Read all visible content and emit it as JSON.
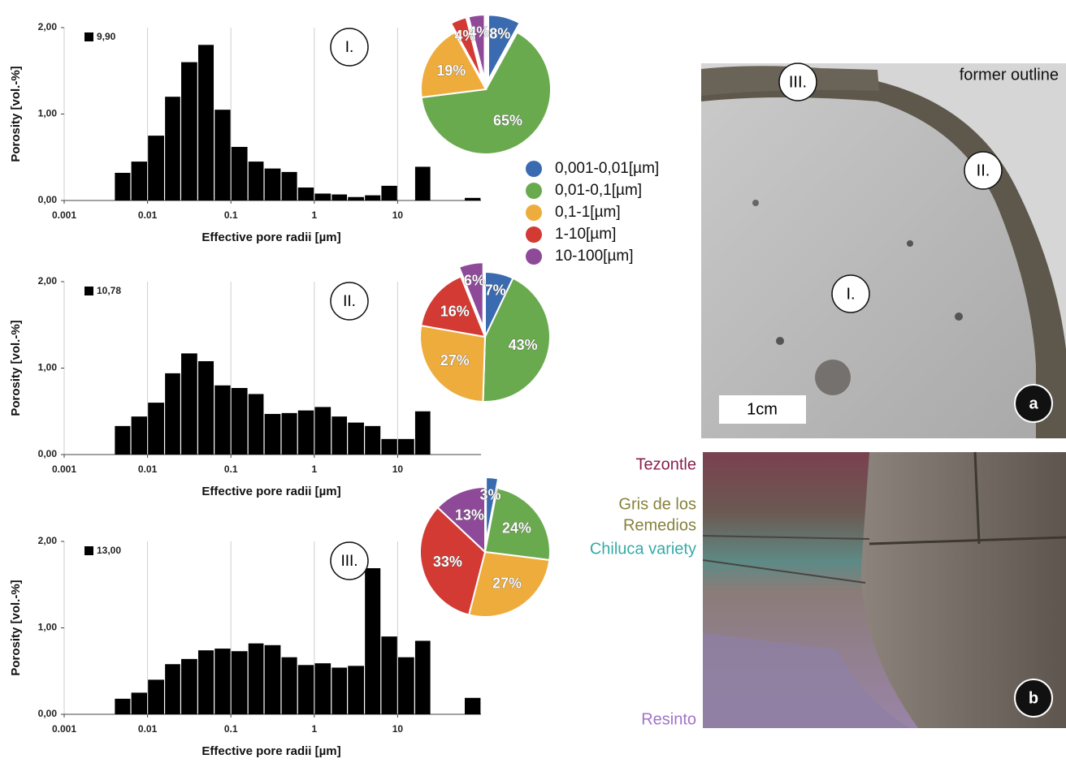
{
  "chart_data": [
    {
      "type": "histogram",
      "xscale": "log",
      "grid": true,
      "color": "#000000",
      "annotation": "9,90",
      "panel_label": "I.",
      "x_label": "Effective pore radii [µm]",
      "y_label": "Porosity [vol.-%]",
      "bins": [
        0.004,
        0.0063,
        0.01,
        0.016,
        0.025,
        0.04,
        0.063,
        0.1,
        0.16,
        0.25,
        0.4,
        0.63,
        1,
        1.6,
        2.5,
        4,
        6.3,
        10,
        16,
        25,
        40,
        63,
        100
      ],
      "values": [
        0.32,
        0.45,
        0.75,
        1.2,
        1.6,
        1.8,
        1.05,
        0.62,
        0.45,
        0.37,
        0.33,
        0.15,
        0.08,
        0.07,
        0.04,
        0.06,
        0.17,
        0,
        0.39,
        0,
        0,
        0.03
      ],
      "xlim": [
        0.001,
        100
      ],
      "xticks": [
        0.001,
        0.01,
        0.1,
        1,
        10
      ],
      "ylim": [
        0,
        2
      ],
      "yticks": [
        {
          "value": 0,
          "label": "0,00"
        },
        {
          "value": 1,
          "label": "1,00"
        },
        {
          "value": 2,
          "label": "2,00"
        }
      ]
    },
    {
      "type": "histogram",
      "xscale": "log",
      "grid": true,
      "color": "#000000",
      "annotation": "10,78",
      "panel_label": "II.",
      "x_label": "Effective pore radii [µm]",
      "y_label": "Porosity [vol.-%]",
      "bins": [
        0.004,
        0.0063,
        0.01,
        0.016,
        0.025,
        0.04,
        0.063,
        0.1,
        0.16,
        0.25,
        0.4,
        0.63,
        1,
        1.6,
        2.5,
        4,
        6.3,
        10,
        16,
        25,
        40,
        63,
        100
      ],
      "values": [
        0.33,
        0.44,
        0.6,
        0.94,
        1.17,
        1.08,
        0.8,
        0.77,
        0.7,
        0.47,
        0.48,
        0.51,
        0.55,
        0.44,
        0.37,
        0.33,
        0.18,
        0.18,
        0.5,
        0,
        0,
        0
      ],
      "xlim": [
        0.001,
        100
      ],
      "xticks": [
        0.001,
        0.01,
        0.1,
        1,
        10
      ],
      "ylim": [
        0,
        2
      ],
      "yticks": [
        {
          "value": 0,
          "label": "0,00"
        },
        {
          "value": 1,
          "label": "1,00"
        },
        {
          "value": 2,
          "label": "2,00"
        }
      ]
    },
    {
      "type": "histogram",
      "xscale": "log",
      "grid": true,
      "color": "#000000",
      "annotation": "13,00",
      "panel_label": "III.",
      "x_label": "Effective pore radii [µm]",
      "y_label": "Porosity [vol.-%]",
      "bins": [
        0.004,
        0.0063,
        0.01,
        0.016,
        0.025,
        0.04,
        0.063,
        0.1,
        0.16,
        0.25,
        0.4,
        0.63,
        1,
        1.6,
        2.5,
        4,
        6.3,
        10,
        16,
        25,
        40,
        63,
        100
      ],
      "values": [
        0.18,
        0.25,
        0.4,
        0.58,
        0.64,
        0.74,
        0.76,
        0.73,
        0.82,
        0.8,
        0.66,
        0.57,
        0.59,
        0.54,
        0.56,
        1.69,
        0.9,
        0.66,
        0.85,
        0,
        0,
        0.19
      ],
      "xlim": [
        0.001,
        100
      ],
      "xticks": [
        0.001,
        0.01,
        0.1,
        1,
        10
      ],
      "ylim": [
        0,
        2
      ],
      "yticks": [
        {
          "value": 0,
          "label": "0,00"
        },
        {
          "value": 1,
          "label": "1,00"
        },
        {
          "value": 2,
          "label": "2,00"
        }
      ]
    },
    {
      "type": "pie",
      "categories": [
        "0,001-0,01[µm]",
        "0,01-0,1[µm]",
        "0,1-1[µm]",
        "1-10[µm]",
        "10-100[µm]"
      ],
      "colors": [
        "#3a6bb0",
        "#6aaa4f",
        "#eeac3c",
        "#d23a33",
        "#8e4a98"
      ],
      "values": [
        8,
        65,
        19,
        4,
        4
      ],
      "value_labels": [
        "8%",
        "65%",
        "19%",
        "4%",
        "4%"
      ],
      "exploded": [
        true,
        false,
        false,
        true,
        true
      ]
    },
    {
      "type": "pie",
      "values": [
        7,
        43,
        27,
        16,
        6
      ],
      "value_labels": [
        "7%",
        "43%",
        "27%",
        "16%",
        "6%"
      ],
      "exploded": [
        false,
        false,
        false,
        false,
        true
      ]
    },
    {
      "type": "pie",
      "values": [
        3,
        24,
        27,
        33,
        13
      ],
      "value_labels": [
        "3%",
        "24%",
        "27%",
        "33%",
        "13%"
      ],
      "exploded": [
        true,
        false,
        false,
        false,
        false
      ]
    }
  ],
  "photos": {
    "a": {
      "caption": "former outline",
      "zones": [
        "III.",
        "II.",
        "I."
      ],
      "scale": "1cm",
      "letter": "a"
    },
    "b": {
      "labels": [
        "Tezontle",
        "Gris de los",
        "Remedios",
        "Chiluca variety",
        "Resinto"
      ],
      "letter": "b"
    }
  }
}
